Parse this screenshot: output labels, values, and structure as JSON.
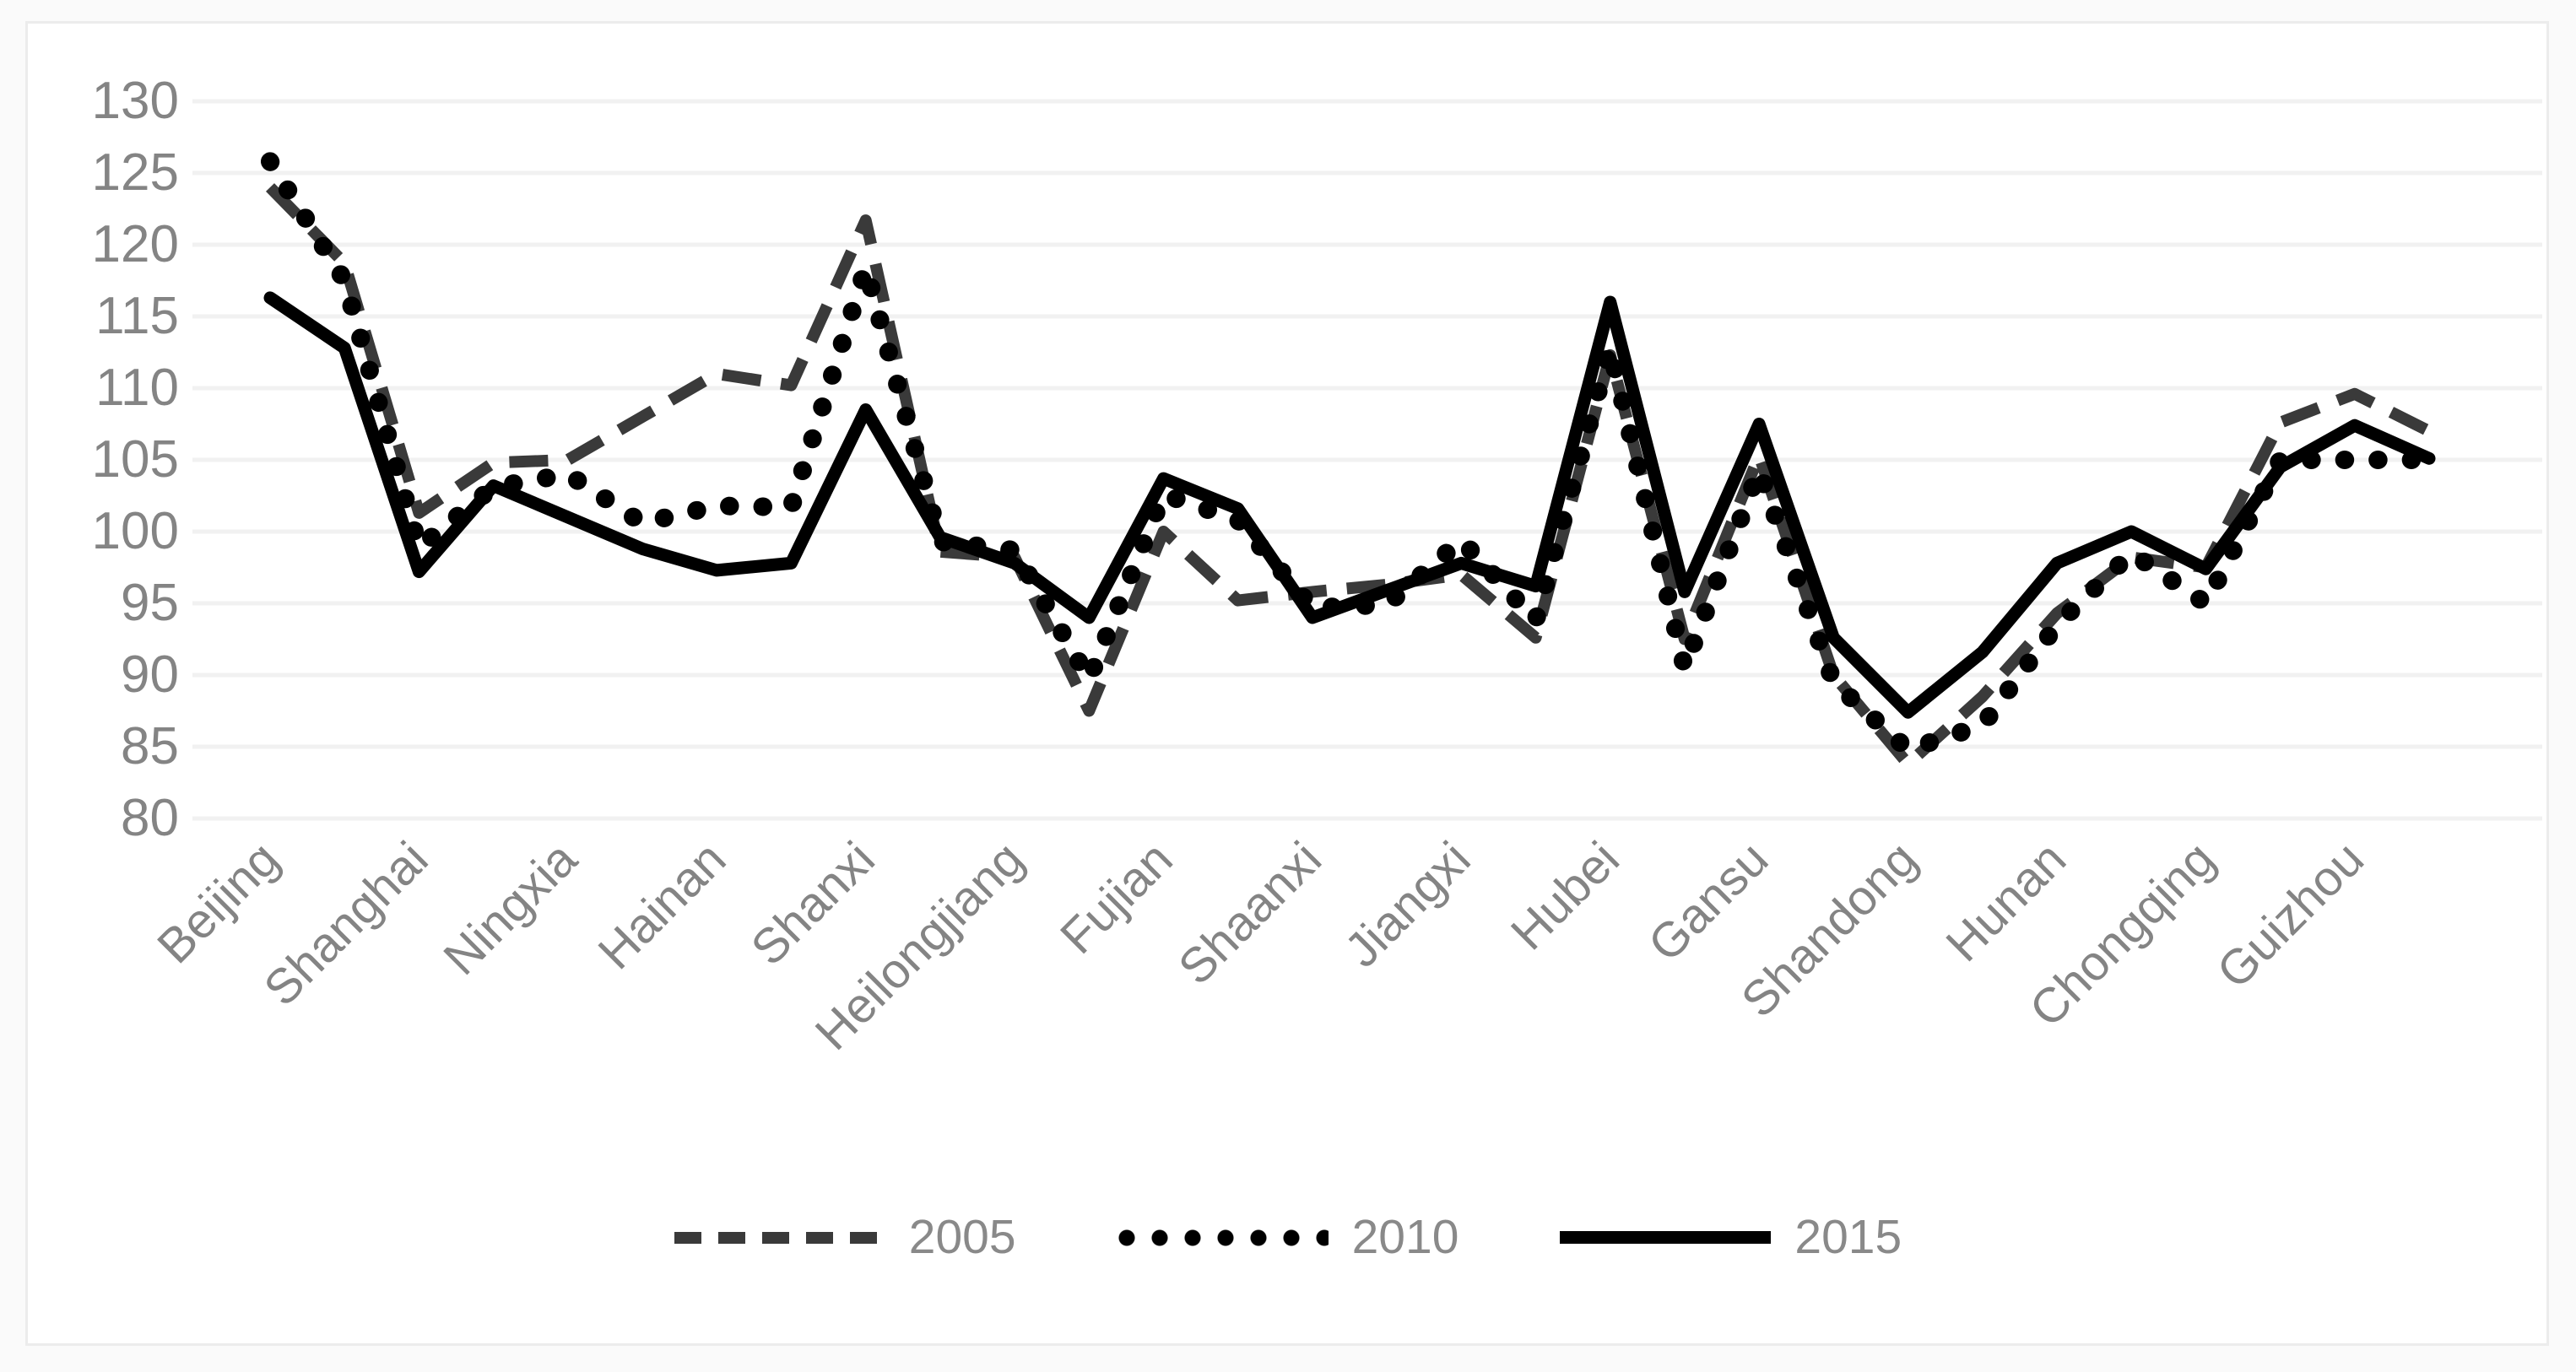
{
  "chart_data": {
    "type": "line",
    "title": "",
    "xlabel": "",
    "ylabel": "",
    "ylim": [
      80,
      130
    ],
    "ytick_step": 5,
    "y_tick_labels": [
      "80",
      "85",
      "90",
      "95",
      "100",
      "105",
      "110",
      "115",
      "120",
      "125",
      "130"
    ],
    "grid": "horizontal-only",
    "legend_position": "bottom-center",
    "n_points": 30,
    "label_every_nth_point": 2,
    "x_labels": [
      "Beijing",
      "Shanghai",
      "Ningxia",
      "Hainan",
      "Shanxi",
      "Heilongjiang",
      "Fujian",
      "Shaanxi",
      "Jiangxi",
      "Hubei",
      "Gansu",
      "Shandong",
      "Hunan",
      "Chongqing",
      "Guizhou"
    ],
    "series": [
      {
        "name": "2005",
        "style": "dashed",
        "color": "#3a3a3a",
        "values": [
          124.0,
          118.7,
          101.3,
          104.8,
          105.0,
          108.0,
          111.0,
          110.2,
          121.7,
          98.6,
          98.2,
          87.5,
          100.0,
          95.2,
          95.8,
          96.3,
          97.0,
          92.6,
          112.3,
          92.5,
          105.3,
          90.0,
          83.8,
          88.5,
          94.3,
          98.2,
          97.5,
          107.6,
          109.6,
          107.0
        ]
      },
      {
        "name": "2010",
        "style": "dotted",
        "color": "#000000",
        "values": [
          125.8,
          117.5,
          98.9,
          103.1,
          104.0,
          100.6,
          101.8,
          101.7,
          118.4,
          99.3,
          98.7,
          89.7,
          102.6,
          100.8,
          94.7,
          94.9,
          99.4,
          93.8,
          112.8,
          90.5,
          104.3,
          89.5,
          84.8,
          86.5,
          93.5,
          98.5,
          95.0,
          105.0,
          105.0,
          105.0
        ]
      },
      {
        "name": "2015",
        "style": "solid",
        "color": "#000000",
        "values": [
          116.3,
          112.8,
          97.2,
          103.2,
          101.0,
          98.8,
          97.3,
          97.8,
          108.5,
          99.6,
          97.8,
          94.0,
          103.7,
          101.6,
          94.0,
          95.9,
          97.8,
          96.2,
          116.0,
          95.8,
          107.5,
          92.6,
          87.4,
          91.6,
          97.8,
          100.0,
          97.4,
          104.5,
          107.4,
          105.1
        ]
      }
    ],
    "colors": {
      "axis_text": "#848484",
      "gridline": "#f1f1f1",
      "frame_border": "#ececec",
      "background": "#ffffff"
    }
  },
  "legend": {
    "items": [
      {
        "label": "2005"
      },
      {
        "label": "2010"
      },
      {
        "label": "2015"
      }
    ]
  }
}
